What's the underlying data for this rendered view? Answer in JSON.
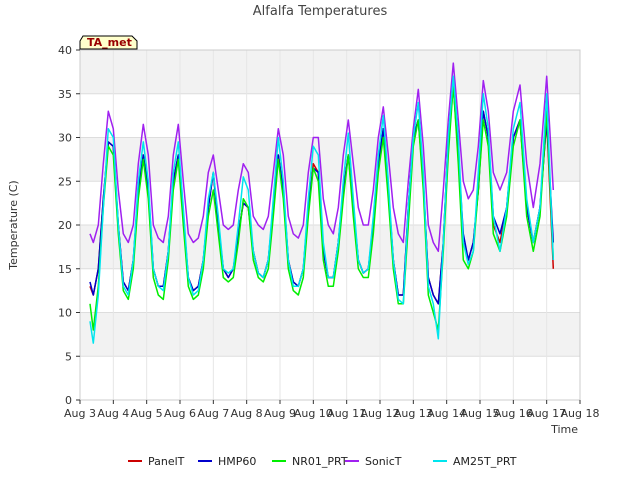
{
  "chart_data": {
    "type": "line",
    "title": "Alfalfa Temperatures",
    "xlabel": "Time",
    "ylabel": "Temperature (C)",
    "xlim": [
      3,
      18
    ],
    "ylim": [
      0,
      40
    ],
    "yticks": [
      0,
      5,
      10,
      15,
      20,
      25,
      30,
      35,
      40
    ],
    "xticks": [
      {
        "value": 3,
        "label": "Aug 3"
      },
      {
        "value": 4,
        "label": "Aug 4"
      },
      {
        "value": 5,
        "label": "Aug 5"
      },
      {
        "value": 6,
        "label": "Aug 6"
      },
      {
        "value": 7,
        "label": "Aug 7"
      },
      {
        "value": 8,
        "label": "Aug 8"
      },
      {
        "value": 9,
        "label": "Aug 9"
      },
      {
        "value": 10,
        "label": "Aug 10"
      },
      {
        "value": 11,
        "label": "Aug 11"
      },
      {
        "value": 12,
        "label": "Aug 12"
      },
      {
        "value": 13,
        "label": "Aug 13"
      },
      {
        "value": 14,
        "label": "Aug 14"
      },
      {
        "value": 15,
        "label": "Aug 15"
      },
      {
        "value": 16,
        "label": "Aug 16"
      },
      {
        "value": 17,
        "label": "Aug 17"
      },
      {
        "value": 18,
        "label": "Aug 18"
      }
    ],
    "station_label": "TA_met",
    "grid": true,
    "banding": true,
    "legend_position": "bottom",
    "series": [
      {
        "name": "PanelT",
        "color": "#cc0000",
        "x": [
          3.3,
          3.4,
          3.55,
          3.7,
          3.85,
          4.0,
          4.15,
          4.3,
          4.45,
          4.6,
          4.75,
          4.9,
          5.05,
          5.2,
          5.35,
          5.5,
          5.65,
          5.8,
          5.95,
          6.1,
          6.25,
          6.4,
          6.55,
          6.7,
          6.85,
          7.0,
          7.15,
          7.3,
          7.45,
          7.6,
          7.75,
          7.9,
          8.05,
          8.2,
          8.35,
          8.5,
          8.65,
          8.8,
          8.95,
          9.1,
          9.25,
          9.4,
          9.55,
          9.7,
          9.85,
          10.0,
          10.15,
          10.3,
          10.45,
          10.6,
          10.75,
          10.9,
          11.05,
          11.2,
          11.35,
          11.5,
          11.65,
          11.8,
          11.95,
          12.1,
          12.25,
          12.4,
          12.55,
          12.7,
          12.85,
          13.0,
          13.15,
          13.3,
          13.45,
          13.6,
          13.75,
          13.9,
          14.05,
          14.2,
          14.35,
          14.5,
          14.65,
          14.8,
          14.95,
          15.1,
          15.25,
          15.4,
          15.6,
          15.8,
          16.0,
          16.2,
          16.4,
          16.6,
          16.8,
          17.0,
          17.2
        ],
        "y": [
          13,
          12,
          15,
          23,
          29.5,
          29,
          20,
          13.5,
          12.5,
          16,
          24,
          28,
          24,
          15,
          13,
          13,
          17,
          25,
          28,
          21,
          14,
          12.5,
          13,
          16,
          22,
          26,
          20,
          15,
          14,
          15,
          19,
          22.5,
          22,
          17,
          14.5,
          14,
          16,
          22,
          28,
          24,
          16,
          13.5,
          13,
          15,
          22,
          27,
          26,
          17,
          14,
          14,
          18,
          24,
          28,
          22,
          16,
          14.5,
          15,
          20,
          27,
          31,
          24,
          16,
          12,
          12,
          22,
          30,
          32,
          25,
          14,
          12,
          11,
          18,
          30,
          36,
          28,
          18,
          16,
          18,
          24,
          33,
          30,
          20,
          18,
          22,
          30,
          32,
          22,
          18,
          22,
          32,
          15
        ]
      },
      {
        "name": "HMP60",
        "color": "#0000cc",
        "x": [
          3.3,
          3.4,
          3.55,
          3.7,
          3.85,
          4.0,
          4.15,
          4.3,
          4.45,
          4.6,
          4.75,
          4.9,
          5.05,
          5.2,
          5.35,
          5.5,
          5.65,
          5.8,
          5.95,
          6.1,
          6.25,
          6.4,
          6.55,
          6.7,
          6.85,
          7.0,
          7.15,
          7.3,
          7.45,
          7.6,
          7.75,
          7.9,
          8.05,
          8.2,
          8.35,
          8.5,
          8.65,
          8.8,
          8.95,
          9.1,
          9.25,
          9.4,
          9.55,
          9.7,
          9.85,
          10.0,
          10.15,
          10.3,
          10.45,
          10.6,
          10.75,
          10.9,
          11.05,
          11.2,
          11.35,
          11.5,
          11.65,
          11.8,
          11.95,
          12.1,
          12.25,
          12.4,
          12.55,
          12.7,
          12.85,
          13.0,
          13.15,
          13.3,
          13.45,
          13.6,
          13.75,
          13.9,
          14.05,
          14.2,
          14.35,
          14.5,
          14.65,
          14.8,
          14.95,
          15.1,
          15.25,
          15.4,
          15.6,
          15.8,
          16.0,
          16.2,
          16.4,
          16.6,
          16.8,
          17.0,
          17.2
        ],
        "y": [
          13.5,
          12,
          15,
          23,
          29.5,
          29,
          20,
          13.5,
          12.5,
          16,
          24,
          28,
          24,
          15,
          13,
          13,
          17,
          25,
          28,
          21,
          14,
          12.5,
          13,
          16,
          22,
          26,
          20,
          15,
          14,
          15,
          19,
          22.5,
          22,
          17,
          14.5,
          14,
          16,
          22,
          28,
          24,
          16,
          13.5,
          13,
          15,
          22,
          26.5,
          26,
          17,
          14,
          14,
          18,
          24,
          28,
          22,
          16,
          14.5,
          15,
          20,
          27,
          31,
          24,
          16,
          12,
          12,
          22,
          30,
          32,
          25,
          14,
          12,
          11,
          18,
          30,
          36,
          28,
          19,
          16,
          18,
          24,
          33,
          30,
          21,
          19,
          22,
          30,
          32,
          22,
          18,
          22,
          32,
          18
        ]
      },
      {
        "name": "NR01_PRT",
        "color": "#00ee00",
        "x": [
          3.3,
          3.4,
          3.55,
          3.7,
          3.85,
          4.0,
          4.15,
          4.3,
          4.45,
          4.6,
          4.75,
          4.9,
          5.05,
          5.2,
          5.35,
          5.5,
          5.65,
          5.8,
          5.95,
          6.1,
          6.25,
          6.4,
          6.55,
          6.7,
          6.85,
          7.0,
          7.15,
          7.3,
          7.45,
          7.6,
          7.75,
          7.9,
          8.05,
          8.2,
          8.35,
          8.5,
          8.65,
          8.8,
          8.95,
          9.1,
          9.25,
          9.4,
          9.55,
          9.7,
          9.85,
          10.0,
          10.15,
          10.3,
          10.45,
          10.6,
          10.75,
          10.9,
          11.05,
          11.2,
          11.35,
          11.5,
          11.65,
          11.8,
          11.95,
          12.1,
          12.25,
          12.4,
          12.55,
          12.7,
          12.85,
          13.0,
          13.15,
          13.3,
          13.45,
          13.6,
          13.75,
          13.9,
          14.05,
          14.2,
          14.35,
          14.5,
          14.65,
          14.8,
          14.95,
          15.1,
          15.25,
          15.4,
          15.6,
          15.8,
          16.0,
          16.2,
          16.4,
          16.6,
          16.8,
          17.0,
          17.2
        ],
        "y": [
          11,
          8,
          13,
          22,
          29,
          28,
          19,
          12.5,
          11.5,
          15,
          23,
          27.5,
          23,
          14,
          12,
          11.5,
          16,
          24,
          27.5,
          20,
          13,
          11.5,
          12,
          15,
          21,
          24,
          19,
          14,
          13.5,
          14,
          18,
          23,
          22,
          16,
          14,
          13.5,
          15,
          21,
          27.5,
          23,
          15,
          12.5,
          12,
          14,
          21,
          26.5,
          25,
          16,
          13,
          13,
          17,
          23,
          28,
          21,
          15,
          14,
          14,
          19,
          26,
          30,
          23,
          15,
          11,
          11,
          20,
          29,
          32,
          24,
          12,
          10,
          8,
          17,
          28,
          36,
          27,
          16,
          15,
          17,
          24,
          32,
          29,
          19,
          17,
          21,
          29,
          32,
          21,
          17,
          21,
          33,
          16
        ]
      },
      {
        "name": "SonicT",
        "color": "#a020f0",
        "x": [
          3.3,
          3.4,
          3.55,
          3.7,
          3.85,
          4.0,
          4.15,
          4.3,
          4.45,
          4.6,
          4.75,
          4.9,
          5.05,
          5.2,
          5.35,
          5.5,
          5.65,
          5.8,
          5.95,
          6.1,
          6.25,
          6.4,
          6.55,
          6.7,
          6.85,
          7.0,
          7.15,
          7.3,
          7.45,
          7.6,
          7.75,
          7.9,
          8.05,
          8.2,
          8.35,
          8.5,
          8.65,
          8.8,
          8.95,
          9.1,
          9.25,
          9.4,
          9.55,
          9.7,
          9.85,
          10.0,
          10.15,
          10.3,
          10.45,
          10.6,
          10.75,
          10.9,
          11.05,
          11.2,
          11.35,
          11.5,
          11.65,
          11.8,
          11.95,
          12.1,
          12.25,
          12.4,
          12.55,
          12.7,
          12.85,
          13.0,
          13.15,
          13.3,
          13.45,
          13.6,
          13.75,
          13.9,
          14.05,
          14.2,
          14.35,
          14.5,
          14.65,
          14.8,
          14.95,
          15.1,
          15.25,
          15.4,
          15.6,
          15.8,
          16.0,
          16.2,
          16.4,
          16.6,
          16.8,
          17.0,
          17.2
        ],
        "y": [
          19,
          18,
          20,
          27,
          33,
          31,
          24,
          19,
          18,
          20,
          27,
          31.5,
          28,
          20,
          18.5,
          18,
          21,
          28,
          31.5,
          25,
          19,
          18,
          18.5,
          21,
          26,
          28,
          24,
          20,
          19.5,
          20,
          24,
          27,
          26,
          21,
          20,
          19.5,
          21,
          26,
          31,
          28,
          21,
          19,
          18.5,
          20,
          26,
          30,
          30,
          23,
          20,
          19,
          22,
          28,
          32,
          27,
          22,
          20,
          20,
          24,
          30,
          33.5,
          28,
          22,
          19,
          18,
          25,
          31,
          35.5,
          29,
          20,
          18,
          17,
          24,
          32,
          38.5,
          32,
          25,
          23,
          24,
          29,
          36.5,
          33,
          26,
          24,
          26,
          33,
          36,
          27,
          22,
          27,
          37,
          24
        ]
      },
      {
        "name": "AM25T_PRT",
        "color": "#00e5ee",
        "x": [
          3.3,
          3.4,
          3.55,
          3.7,
          3.85,
          4.0,
          4.15,
          4.3,
          4.45,
          4.6,
          4.75,
          4.9,
          5.05,
          5.2,
          5.35,
          5.5,
          5.65,
          5.8,
          5.95,
          6.1,
          6.25,
          6.4,
          6.55,
          6.7,
          6.85,
          7.0,
          7.15,
          7.3,
          7.45,
          7.6,
          7.75,
          7.9,
          8.05,
          8.2,
          8.35,
          8.5,
          8.65,
          8.8,
          8.95,
          9.1,
          9.25,
          9.4,
          9.55,
          9.7,
          9.85,
          10.0,
          10.15,
          10.3,
          10.45,
          10.6,
          10.75,
          10.9,
          11.05,
          11.2,
          11.35,
          11.5,
          11.65,
          11.8,
          11.95,
          12.1,
          12.25,
          12.4,
          12.55,
          12.7,
          12.85,
          13.0,
          13.15,
          13.3,
          13.45,
          13.6,
          13.75,
          13.9,
          14.05,
          14.2,
          14.35,
          14.5,
          14.65,
          14.8,
          14.95,
          15.1,
          15.25,
          15.4,
          15.6,
          15.8,
          16.0,
          16.2,
          16.4,
          16.6,
          16.8,
          17.0,
          17.2
        ],
        "y": [
          9,
          6.5,
          12,
          22,
          31,
          30,
          20,
          13,
          12,
          16,
          25,
          29.5,
          25,
          15,
          13,
          12.5,
          17,
          26,
          29.5,
          22,
          14,
          12,
          12.5,
          16,
          23,
          26,
          21,
          15,
          14.5,
          15,
          20,
          25.5,
          24,
          17,
          14.5,
          14,
          16,
          23,
          30,
          25,
          16,
          13,
          13,
          15,
          23,
          29,
          28,
          18,
          14,
          14,
          18,
          25,
          30.5,
          23,
          16,
          14.5,
          15,
          21,
          28,
          32.5,
          25,
          16,
          11.5,
          11,
          22,
          30,
          34,
          26,
          13,
          11,
          7,
          18,
          30,
          37,
          30,
          18,
          15.5,
          17,
          26,
          35,
          31,
          21,
          17,
          22,
          31,
          34,
          23,
          18,
          22,
          35,
          16
        ]
      }
    ]
  }
}
